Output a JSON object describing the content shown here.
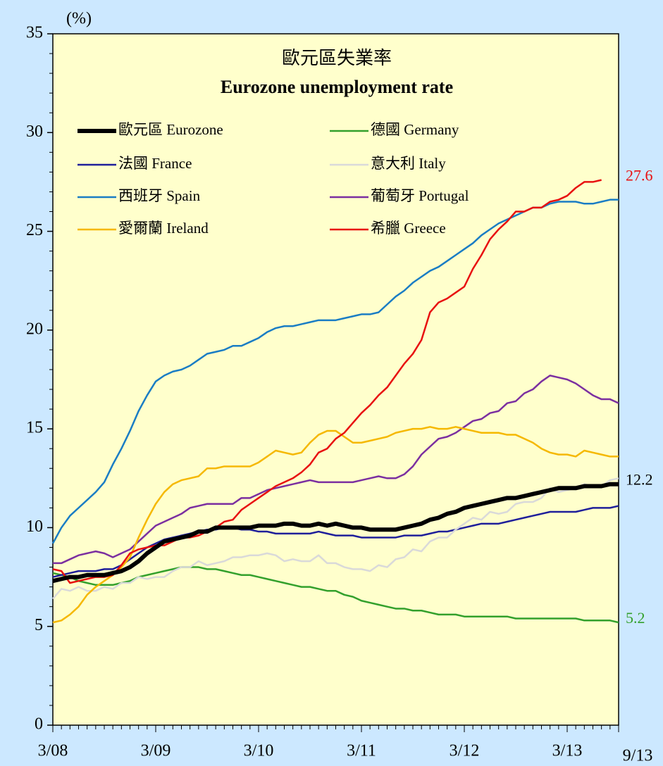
{
  "chart_data": {
    "type": "line",
    "title": "歐元區失業率",
    "subtitle": "Eurozone unemployment rate",
    "y_label": "(%)",
    "categories": [
      "3/08",
      null,
      null,
      null,
      null,
      null,
      null,
      null,
      null,
      null,
      null,
      null,
      "3/09",
      null,
      null,
      null,
      null,
      null,
      null,
      null,
      null,
      null,
      null,
      null,
      "3/10",
      null,
      null,
      null,
      null,
      null,
      null,
      null,
      null,
      null,
      null,
      null,
      "3/11",
      null,
      null,
      null,
      null,
      null,
      null,
      null,
      null,
      null,
      null,
      null,
      "3/12",
      null,
      null,
      null,
      null,
      null,
      null,
      null,
      null,
      null,
      null,
      null,
      "3/13",
      null,
      null,
      null,
      null,
      null,
      "9/13"
    ],
    "ylim": [
      0,
      35
    ],
    "yticks": [
      0,
      5,
      10,
      15,
      20,
      25,
      30,
      35
    ],
    "yminorticks": [
      1,
      2,
      3,
      4,
      6,
      7,
      8,
      9,
      11,
      12,
      13,
      14,
      16,
      17,
      18,
      19,
      21,
      22,
      23,
      24,
      26,
      27,
      28,
      29,
      31,
      32,
      33,
      34
    ],
    "series": [
      {
        "name": "歐元區 Eurozone",
        "color": "#000000",
        "width": 6,
        "values": [
          7.3,
          7.4,
          7.5,
          7.5,
          7.6,
          7.6,
          7.6,
          7.7,
          7.8,
          8.0,
          8.3,
          8.7,
          9.0,
          9.3,
          9.4,
          9.5,
          9.6,
          9.8,
          9.8,
          10.0,
          10.0,
          10.0,
          10.0,
          10.0,
          10.1,
          10.1,
          10.1,
          10.2,
          10.2,
          10.1,
          10.1,
          10.2,
          10.1,
          10.2,
          10.1,
          10.0,
          10.0,
          9.9,
          9.9,
          9.9,
          9.9,
          10.0,
          10.1,
          10.2,
          10.4,
          10.5,
          10.7,
          10.8,
          11.0,
          11.1,
          11.2,
          11.3,
          11.4,
          11.5,
          11.5,
          11.6,
          11.7,
          11.8,
          11.9,
          12.0,
          12.0,
          12.0,
          12.1,
          12.1,
          12.1,
          12.2,
          12.2
        ]
      },
      {
        "name": "德國 Germany",
        "color": "#33a02c",
        "width": 2.5,
        "values": [
          7.7,
          7.6,
          7.5,
          7.3,
          7.2,
          7.1,
          7.1,
          7.1,
          7.2,
          7.3,
          7.5,
          7.6,
          7.7,
          7.8,
          7.9,
          8.0,
          8.0,
          8.0,
          7.9,
          7.9,
          7.8,
          7.7,
          7.6,
          7.6,
          7.5,
          7.4,
          7.3,
          7.2,
          7.1,
          7.0,
          7.0,
          6.9,
          6.8,
          6.8,
          6.6,
          6.5,
          6.3,
          6.2,
          6.1,
          6.0,
          5.9,
          5.9,
          5.8,
          5.8,
          5.7,
          5.6,
          5.6,
          5.6,
          5.5,
          5.5,
          5.5,
          5.5,
          5.5,
          5.5,
          5.4,
          5.4,
          5.4,
          5.4,
          5.4,
          5.4,
          5.4,
          5.4,
          5.3,
          5.3,
          5.3,
          5.3,
          5.2
        ]
      },
      {
        "name": "法國 France",
        "color": "#1f1f9a",
        "width": 2.5,
        "values": [
          7.5,
          7.6,
          7.7,
          7.8,
          7.8,
          7.8,
          7.9,
          7.9,
          8.1,
          8.4,
          8.7,
          9.0,
          9.2,
          9.4,
          9.5,
          9.6,
          9.7,
          9.8,
          9.9,
          9.9,
          10.0,
          10.0,
          9.9,
          9.9,
          9.8,
          9.8,
          9.7,
          9.7,
          9.7,
          9.7,
          9.7,
          9.8,
          9.7,
          9.6,
          9.6,
          9.6,
          9.5,
          9.5,
          9.5,
          9.5,
          9.5,
          9.6,
          9.6,
          9.6,
          9.7,
          9.8,
          9.8,
          9.9,
          10.0,
          10.1,
          10.2,
          10.2,
          10.2,
          10.3,
          10.4,
          10.5,
          10.6,
          10.7,
          10.8,
          10.8,
          10.8,
          10.8,
          10.9,
          11.0,
          11.0,
          11.0,
          11.1
        ]
      },
      {
        "name": "意大利 Italy",
        "color": "#d9d9d9",
        "width": 2.5,
        "values": [
          6.4,
          6.9,
          6.8,
          7.0,
          6.8,
          6.8,
          7.0,
          6.9,
          7.2,
          7.2,
          7.5,
          7.4,
          7.5,
          7.5,
          7.8,
          8.0,
          8.0,
          8.3,
          8.1,
          8.2,
          8.3,
          8.5,
          8.5,
          8.6,
          8.6,
          8.7,
          8.6,
          8.3,
          8.4,
          8.3,
          8.3,
          8.6,
          8.2,
          8.2,
          8.0,
          7.9,
          7.9,
          7.8,
          8.1,
          8.0,
          8.4,
          8.5,
          8.9,
          8.8,
          9.3,
          9.5,
          9.5,
          9.9,
          10.2,
          10.5,
          10.4,
          10.8,
          10.7,
          10.8,
          11.2,
          11.3,
          11.3,
          11.5,
          12.0,
          11.8,
          11.9,
          12.0,
          12.2,
          12.1,
          12.1,
          12.4,
          12.5
        ]
      },
      {
        "name": "西班牙 Spain",
        "color": "#1a7dc4",
        "width": 2.5,
        "values": [
          9.2,
          10.0,
          10.6,
          11.0,
          11.4,
          11.8,
          12.3,
          13.2,
          14.0,
          14.9,
          15.9,
          16.7,
          17.4,
          17.7,
          17.9,
          18.0,
          18.2,
          18.5,
          18.8,
          18.9,
          19.0,
          19.2,
          19.2,
          19.4,
          19.6,
          19.9,
          20.1,
          20.2,
          20.2,
          20.3,
          20.4,
          20.5,
          20.5,
          20.5,
          20.6,
          20.7,
          20.8,
          20.8,
          20.9,
          21.3,
          21.7,
          22.0,
          22.4,
          22.7,
          23.0,
          23.2,
          23.5,
          23.8,
          24.1,
          24.4,
          24.8,
          25.1,
          25.4,
          25.6,
          25.8,
          26.0,
          26.2,
          26.2,
          26.4,
          26.5,
          26.5,
          26.5,
          26.4,
          26.4,
          26.5,
          26.6,
          26.6
        ]
      },
      {
        "name": "葡萄牙 Portugal",
        "color": "#7b2fa0",
        "width": 2.5,
        "values": [
          8.2,
          8.2,
          8.4,
          8.6,
          8.7,
          8.8,
          8.7,
          8.5,
          8.7,
          8.9,
          9.3,
          9.7,
          10.1,
          10.3,
          10.5,
          10.7,
          11.0,
          11.1,
          11.2,
          11.2,
          11.2,
          11.2,
          11.5,
          11.5,
          11.7,
          11.9,
          12.0,
          12.1,
          12.2,
          12.3,
          12.4,
          12.3,
          12.3,
          12.3,
          12.3,
          12.3,
          12.4,
          12.5,
          12.6,
          12.5,
          12.5,
          12.7,
          13.1,
          13.7,
          14.1,
          14.5,
          14.6,
          14.8,
          15.1,
          15.4,
          15.5,
          15.8,
          15.9,
          16.3,
          16.4,
          16.8,
          17.0,
          17.4,
          17.7,
          17.6,
          17.5,
          17.3,
          17.0,
          16.7,
          16.5,
          16.5,
          16.3
        ]
      },
      {
        "name": "愛爾蘭 Ireland",
        "color": "#f5b800",
        "width": 2.5,
        "values": [
          5.2,
          5.3,
          5.6,
          6.0,
          6.6,
          7.0,
          7.3,
          7.6,
          8.0,
          8.5,
          9.5,
          10.4,
          11.2,
          11.8,
          12.2,
          12.4,
          12.5,
          12.6,
          13.0,
          13.0,
          13.1,
          13.1,
          13.1,
          13.1,
          13.3,
          13.6,
          13.9,
          13.8,
          13.7,
          13.8,
          14.3,
          14.7,
          14.9,
          14.9,
          14.6,
          14.3,
          14.3,
          14.4,
          14.5,
          14.6,
          14.8,
          14.9,
          15.0,
          15.0,
          15.1,
          15.0,
          15.0,
          15.1,
          15.0,
          14.9,
          14.8,
          14.8,
          14.8,
          14.7,
          14.7,
          14.5,
          14.3,
          14.0,
          13.8,
          13.7,
          13.7,
          13.6,
          13.9,
          13.8,
          13.7,
          13.6,
          13.6
        ]
      },
      {
        "name": "希臘 Greece",
        "color": "#e81010",
        "width": 2.5,
        "values": [
          7.9,
          7.8,
          7.2,
          7.3,
          7.4,
          7.5,
          7.5,
          7.6,
          8.1,
          8.7,
          8.9,
          9.0,
          9.1,
          9.1,
          9.3,
          9.5,
          9.5,
          9.6,
          9.8,
          10.0,
          10.3,
          10.4,
          10.9,
          11.2,
          11.5,
          11.8,
          12.1,
          12.3,
          12.5,
          12.8,
          13.2,
          13.8,
          14.0,
          14.5,
          14.8,
          15.3,
          15.8,
          16.2,
          16.7,
          17.1,
          17.7,
          18.3,
          18.8,
          19.5,
          20.9,
          21.4,
          21.6,
          21.9,
          22.2,
          23.1,
          23.8,
          24.6,
          25.1,
          25.5,
          26.0,
          26.0,
          26.2,
          26.2,
          26.5,
          26.6,
          26.8,
          27.2,
          27.5,
          27.5,
          27.6,
          null,
          null
        ]
      }
    ],
    "annotations": [
      {
        "value": 27.6,
        "color": "#e81010"
      },
      {
        "value": 12.2,
        "color": "#000000"
      },
      {
        "value": 5.2,
        "color": "#33a02c"
      }
    ]
  }
}
